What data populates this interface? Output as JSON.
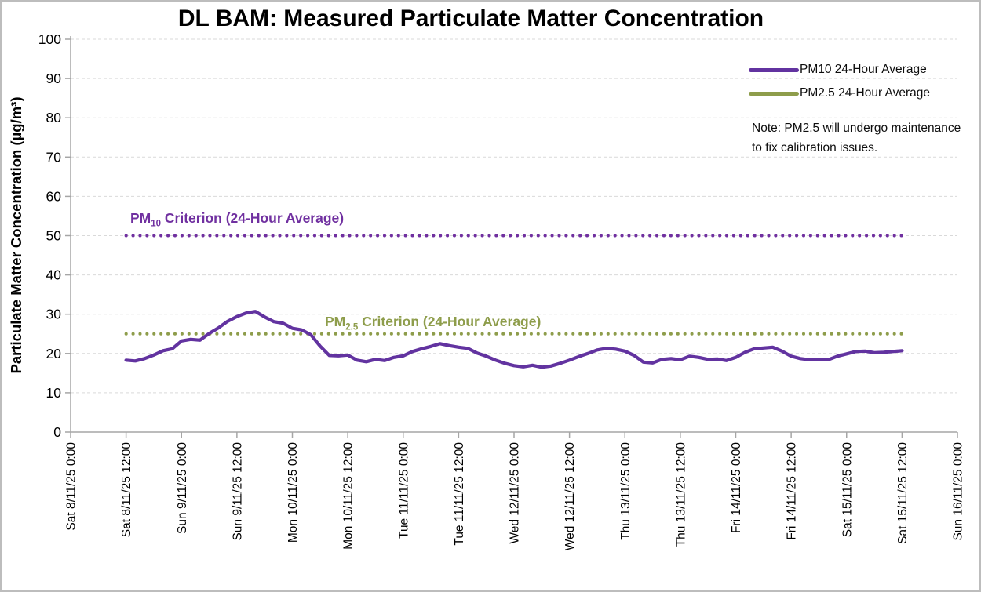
{
  "colors": {
    "pm10_series": "#6233a0",
    "pm10_criterion": "#7030a0",
    "pm25": "#8e9d4b",
    "gridline": "#d9d9d9",
    "axis": "#a6a6a6",
    "text": "#000000"
  },
  "chart_data": {
    "type": "line",
    "title": "DL BAM: Measured Particulate Matter Concentration",
    "xlabel": "",
    "ylabel": "Particulate Matter Concentration (µg/m³)",
    "ylim": [
      0,
      100
    ],
    "ytick_step": 10,
    "ytick_labels": [
      "0",
      "10",
      "20",
      "30",
      "40",
      "50",
      "60",
      "70",
      "80",
      "90",
      "100"
    ],
    "grid": "horizontal-dashed",
    "legend_position": "inside-top-right",
    "x_axis_hours_range": [
      0,
      192
    ],
    "x_tick_interval_hours": 12,
    "x_tick_labels": [
      "Sat 8/11/25 0:00",
      "Sat 8/11/25 12:00",
      "Sun 9/11/25 0:00",
      "Sun 9/11/25 12:00",
      "Mon 10/11/25 0:00",
      "Mon 10/11/25 12:00",
      "Tue 11/11/25 0:00",
      "Tue 11/11/25 12:00",
      "Wed 12/11/25 0:00",
      "Wed 12/11/25 12:00",
      "Thu 13/11/25 0:00",
      "Thu 13/11/25 12:00",
      "Fri 14/11/25 0:00",
      "Fri 14/11/25 12:00",
      "Sat 15/11/25 0:00",
      "Sat 15/11/25 12:00",
      "Sun 16/11/25 0:00"
    ],
    "series": [
      {
        "name": "PM10 24-Hour Average",
        "color": "#6233a0",
        "x_start_hour": 12,
        "x_step_hours": 2,
        "values": [
          18.3,
          18.1,
          18.7,
          19.6,
          20.7,
          21.2,
          23.2,
          23.6,
          23.4,
          25.1,
          26.5,
          28.2,
          29.4,
          30.3,
          30.7,
          29.3,
          28.1,
          27.7,
          26.4,
          26.0,
          24.8,
          21.9,
          19.5,
          19.4,
          19.6,
          18.3,
          17.9,
          18.5,
          18.2,
          19.0,
          19.4,
          20.5,
          21.2,
          21.8,
          22.5,
          22.0,
          21.6,
          21.3,
          20.1,
          19.3,
          18.3,
          17.5,
          16.9,
          16.6,
          17.0,
          16.5,
          16.8,
          17.5,
          18.3,
          19.2,
          20.0,
          20.9,
          21.3,
          21.1,
          20.6,
          19.5,
          17.8,
          17.6,
          18.5,
          18.7,
          18.4,
          19.3,
          19.0,
          18.5,
          18.6,
          18.2,
          19.0,
          20.3,
          21.2,
          21.4,
          21.6,
          20.6,
          19.3,
          18.7,
          18.4,
          18.5,
          18.4,
          19.3,
          19.9,
          20.5,
          20.6,
          20.2,
          20.3,
          20.5,
          20.7
        ]
      },
      {
        "name": "PM2.5 24-Hour Average",
        "color": "#8e9d4b",
        "x_start_hour": 12,
        "x_step_hours": 2,
        "values": []
      }
    ],
    "reference_lines": [
      {
        "name": "pm10-criterion",
        "prefix": "PM",
        "sub": "10",
        "rest": " Criterion (24-Hour Average)",
        "value": 50,
        "color": "#7030a0",
        "span_hours": [
          12,
          180
        ]
      },
      {
        "name": "pm25-criterion",
        "prefix": "PM",
        "sub": "2.5",
        "rest": " Criterion (24-Hour Average)",
        "value": 25,
        "color": "#8e9d4b",
        "span_hours": [
          12,
          180
        ]
      }
    ],
    "annotation": "Note: PM2.5 will undergo maintenance to fix calibration issues."
  }
}
